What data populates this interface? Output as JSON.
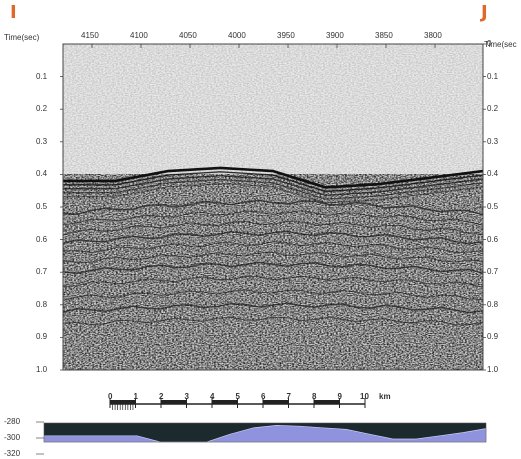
{
  "markers": {
    "left": "I",
    "right": "J",
    "color": "#e0682a"
  },
  "seismic": {
    "axis_title_left": "Time(sec)",
    "axis_title_right": "Time(sec",
    "x_ticks": [
      "4150",
      "4100",
      "4050",
      "4000",
      "3950",
      "3900",
      "3850",
      "3800"
    ],
    "y_ticks_left": [
      "0.1",
      "0.2",
      "0.3",
      "0.4",
      "0.5",
      "0.6",
      "0.7",
      "0.8",
      "0.9",
      "1.0"
    ],
    "y_ticks_right": [
      "0",
      "0.1",
      "0.2",
      "0.3",
      "0.4",
      "0.5",
      "0.6",
      "0.7",
      "0.8",
      "0.9",
      "1.0"
    ],
    "y_range": [
      0,
      1.0
    ],
    "seafloor_time_sec": [
      0.42,
      0.42,
      0.39,
      0.38,
      0.39,
      0.44,
      0.43,
      0.41,
      0.39
    ]
  },
  "scale": {
    "ticks": [
      "0",
      "1",
      "2",
      "3",
      "4",
      "5",
      "6",
      "7",
      "8",
      "9",
      "10"
    ],
    "unit": "km"
  },
  "profile": {
    "depth_ticks": [
      "-280",
      "-300",
      "-320"
    ],
    "fill_color": "#8f92dc",
    "bg_color": "#1c2a2e"
  }
}
